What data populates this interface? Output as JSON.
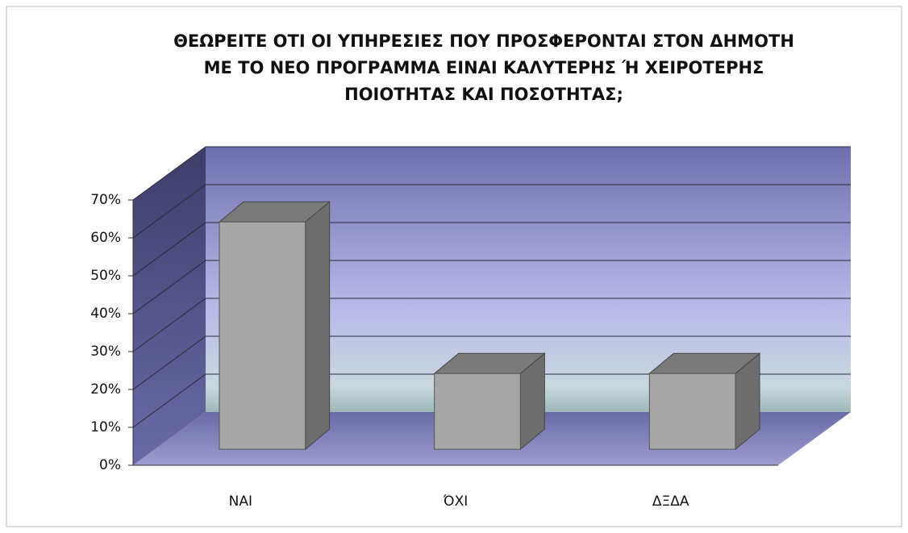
{
  "chart_data": {
    "type": "bar3d",
    "title": [
      "ΘΕΩΡΕΙΤΕ ΟΤΙ ΟΙ ΥΠΗΡΕΣΙΕΣ ΠΟΥ ΠΡΟΣΦΕΡΟΝΤΑΙ ΣΤΟΝ ΔΗΜΟΤΗ",
      "ΜΕ ΤΟ ΝΕΟ ΠΡΟΓΡΑΜΜΑ ΕΙΝΑΙ ΚΑΛΥΤΕΡΗΣ Ή ΧΕΙΡΟΤΕΡΗΣ",
      "ΠΟΙΟΤΗΤΑΣ ΚΑΙ ΠΟΣΟΤΗΤΑΣ;"
    ],
    "categories": [
      "ΝΑΙ",
      "ΌΧΙ",
      "ΔΞΔΑ"
    ],
    "values": [
      60,
      20,
      20
    ],
    "color": "#a6a6a6",
    "ylim": [
      0,
      70
    ],
    "yticks": [
      {
        "value": 0,
        "label": "0%"
      },
      {
        "value": 10,
        "label": "10%"
      },
      {
        "value": 20,
        "label": "20%"
      },
      {
        "value": 30,
        "label": "30%"
      },
      {
        "value": 40,
        "label": "40%"
      },
      {
        "value": 50,
        "label": "50%"
      },
      {
        "value": 60,
        "label": "60%"
      },
      {
        "value": 70,
        "label": "70%"
      }
    ],
    "grid": true
  }
}
